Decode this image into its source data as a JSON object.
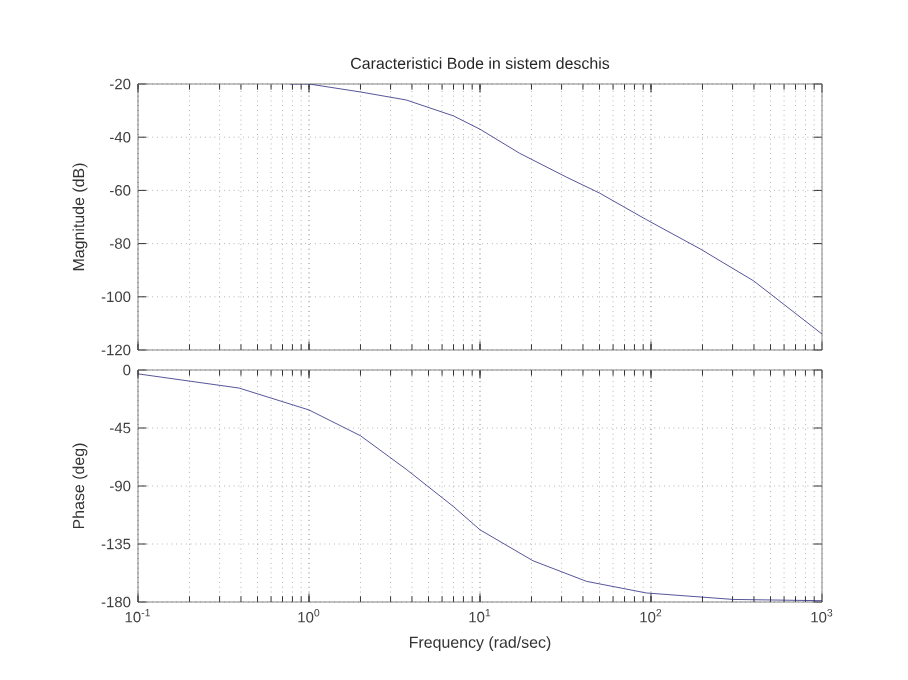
{
  "chart_data": [
    {
      "type": "line",
      "title": "Caracteristici Bode in sistem deschis",
      "ylabel": "Magnitude (dB)",
      "log": "x",
      "grid": true,
      "tick_labels": "y",
      "color": "#2b2b80",
      "xlim": [
        0.1,
        1000
      ],
      "xticks": [
        {
          "value": 0.1,
          "label": null
        },
        {
          "value": 1,
          "label": null
        },
        {
          "value": 10,
          "label": null
        },
        {
          "value": 100,
          "label": null
        },
        {
          "value": 1000,
          "label": null
        }
      ],
      "ylim": [
        -120,
        -20
      ],
      "yticks": [
        -120,
        -100,
        -80,
        -60,
        -40,
        -20
      ],
      "x": [
        0.77,
        1,
        2,
        3.7,
        7,
        10,
        17,
        32,
        50,
        94,
        194,
        398,
        1000
      ],
      "values": [
        -20,
        -20,
        -23,
        -26,
        -32,
        -37,
        -46,
        -55,
        -61,
        -71,
        -82,
        -94,
        -114
      ]
    },
    {
      "type": "line",
      "xlabel": "Frequency  (rad/sec)",
      "ylabel": "Phase (deg)",
      "log": "x",
      "grid": true,
      "color": "#2b2b80",
      "xlim": [
        0.1,
        1000
      ],
      "xticks": [
        {
          "value": 0.1,
          "label": "10$^{-1}$"
        },
        {
          "value": 1,
          "label": "10$^{0}$"
        },
        {
          "value": 10,
          "label": "10$^{1}$"
        },
        {
          "value": 100,
          "label": "10$^{2}$"
        },
        {
          "value": 1000,
          "label": "10$^{3}$"
        }
      ],
      "ylim": [
        -180,
        0
      ],
      "yticks": [
        -180,
        -135,
        -90,
        -45,
        0
      ],
      "x": [
        0.1,
        0.39,
        1,
        2,
        3.7,
        7,
        10,
        20.4,
        42,
        94,
        302,
        1000
      ],
      "values": [
        -3,
        -14,
        -31,
        -51,
        -77,
        -106,
        -124,
        -148,
        -164,
        -173,
        -178,
        -179
      ]
    }
  ]
}
